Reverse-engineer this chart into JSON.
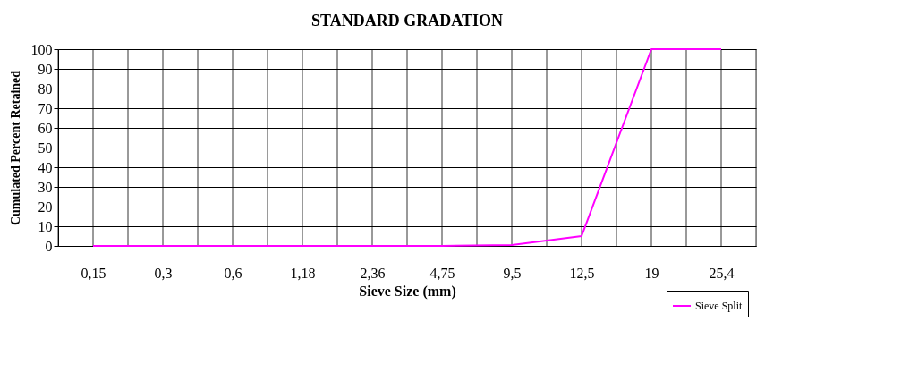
{
  "chart_data": {
    "type": "line",
    "title": "STANDARD GRADATION",
    "xlabel": "Sieve Size (mm)",
    "ylabel": "Cumulated Percent Retained",
    "categories": [
      "0,15",
      "0,3",
      "0,6",
      "1,18",
      "2,36",
      "4,75",
      "9,5",
      "12,5",
      "19",
      "25,4"
    ],
    "series": [
      {
        "name": "Sieve Split",
        "color": "#ff00ff",
        "values": [
          0,
          0,
          0,
          0,
          0,
          0,
          0.5,
          5,
          100,
          100
        ]
      }
    ],
    "ylim": [
      0,
      100
    ],
    "yticks": [
      0,
      10,
      20,
      30,
      40,
      50,
      60,
      70,
      80,
      90,
      100
    ],
    "grid": true,
    "legend": "bottom right",
    "marker": "none",
    "line_style": "solid"
  }
}
